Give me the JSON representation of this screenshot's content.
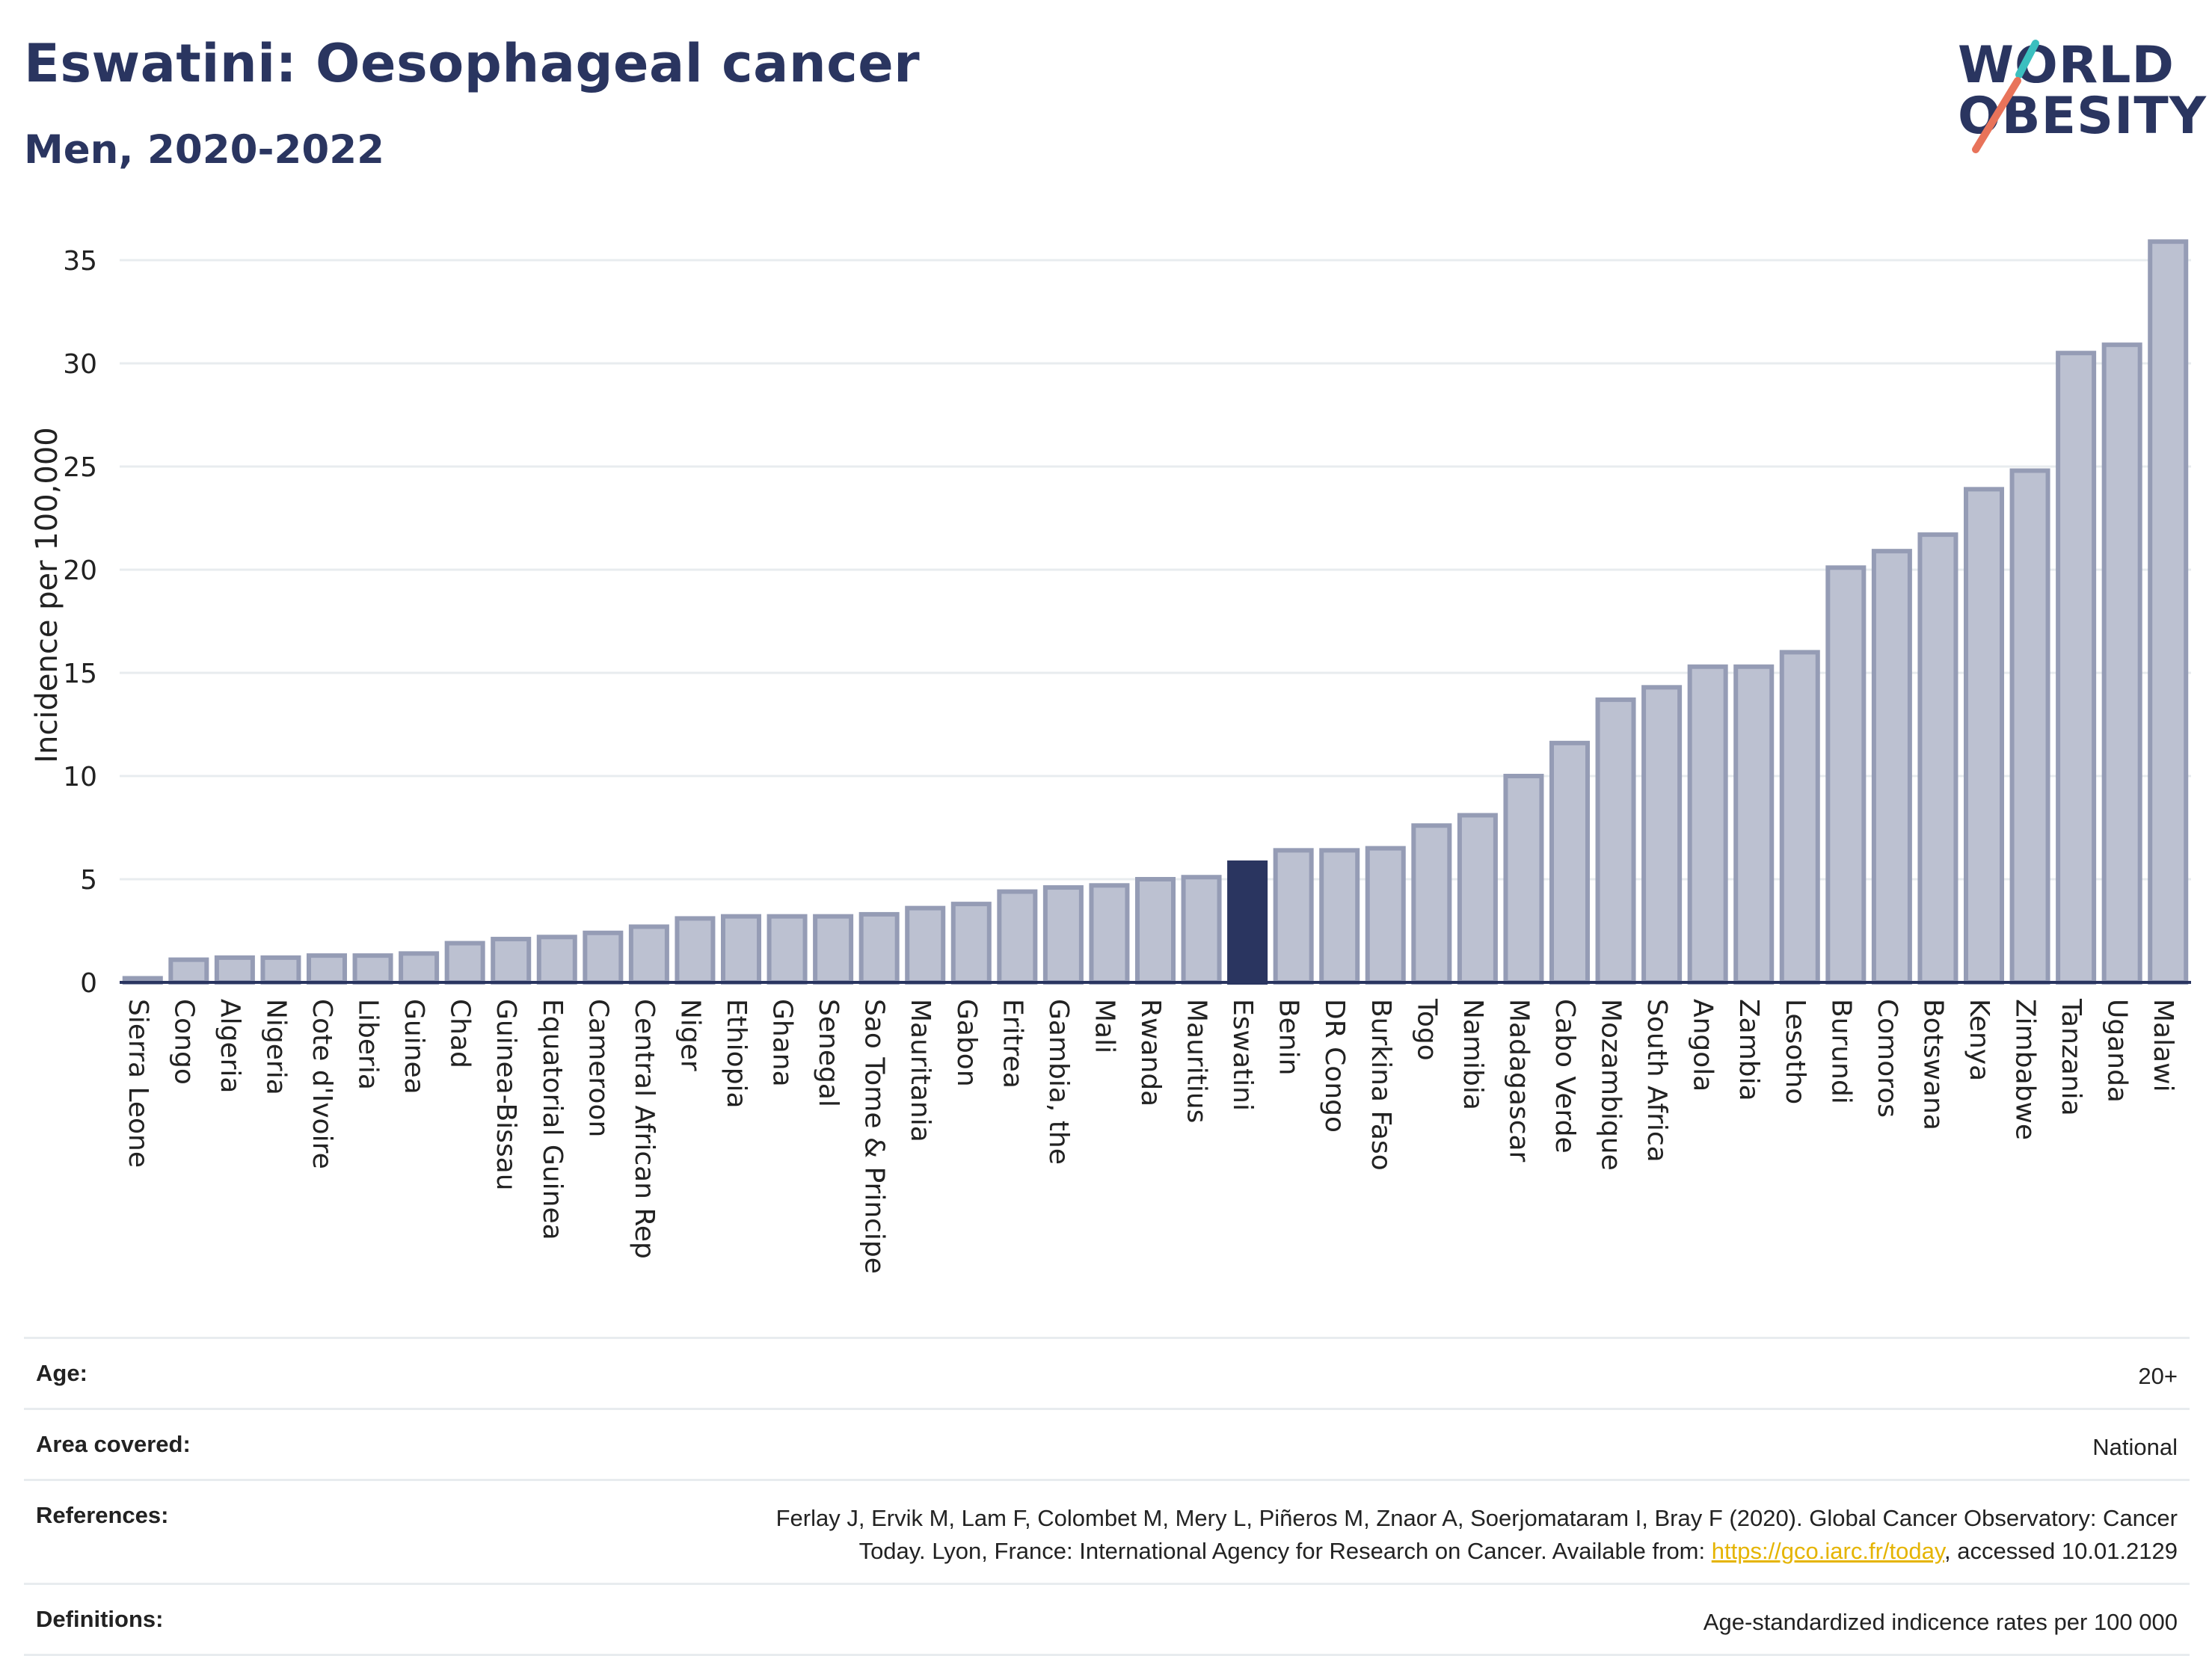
{
  "header": {
    "title": "Eswatini: Oesophageal cancer",
    "subtitle": "Men, 2020-2022"
  },
  "logo": {
    "line1": "WORLD",
    "line2": "OBESITY",
    "colors": {
      "text": "#2a3560",
      "teal": "#3bbfbf",
      "coral": "#e8735a"
    }
  },
  "chart_data": {
    "type": "bar",
    "ylabel": "Incidence per 100,000",
    "ylim": [
      0,
      36
    ],
    "yticks": [
      0,
      5,
      10,
      15,
      20,
      25,
      30,
      35
    ],
    "grid": true,
    "highlight": "Eswatini",
    "colors": {
      "bar": "#bcc1d1",
      "bar_border": "#959cb5",
      "highlight": "#2a3560",
      "grid": "#e8ecef",
      "axis": "#2a3560"
    },
    "categories": [
      "Sierra Leone",
      "Congo",
      "Algeria",
      "Nigeria",
      "Cote d'Ivoire",
      "Liberia",
      "Guinea",
      "Chad",
      "Guinea-Bissau",
      "Equatorial Guinea",
      "Cameroon",
      "Central African Rep",
      "Niger",
      "Ethiopia",
      "Ghana",
      "Senegal",
      "Sao Tome & Principe",
      "Mauritania",
      "Gabon",
      "Eritrea",
      "Gambia, the",
      "Mali",
      "Rwanda",
      "Mauritius",
      "Eswatini",
      "Benin",
      "DR Congo",
      "Burkina Faso",
      "Togo",
      "Namibia",
      "Madagascar",
      "Cabo Verde",
      "Mozambique",
      "South Africa",
      "Angola",
      "Zambia",
      "Lesotho",
      "Burundi",
      "Comoros",
      "Botswana",
      "Kenya",
      "Zimbabwe",
      "Tanzania",
      "Uganda",
      "Malawi"
    ],
    "values": [
      0.2,
      1.1,
      1.2,
      1.2,
      1.3,
      1.3,
      1.4,
      1.9,
      2.1,
      2.2,
      2.4,
      2.7,
      3.1,
      3.2,
      3.2,
      3.2,
      3.3,
      3.6,
      3.8,
      4.4,
      4.6,
      4.7,
      5.0,
      5.1,
      5.8,
      6.4,
      6.4,
      6.5,
      7.6,
      8.1,
      10.0,
      11.6,
      13.7,
      14.3,
      15.3,
      15.3,
      16.0,
      20.1,
      20.9,
      21.7,
      23.9,
      24.8,
      30.5,
      30.9,
      35.9
    ]
  },
  "info": {
    "rows": [
      {
        "label": "Age:",
        "value": "20+"
      },
      {
        "label": "Area covered:",
        "value": "National"
      },
      {
        "label": "References:",
        "value_line1": "Ferlay J, Ervik M, Lam F, Colombet M, Mery L, Piñeros M, Znaor A, Soerjomataram I, Bray F (2020). Global Cancer Observatory: Cancer",
        "value_line2_pre": "Today. Lyon, France: International Agency for Research on Cancer. Available from: ",
        "link": "https://gco.iarc.fr/today",
        "value_line2_post": ", accessed 10.01.2129"
      },
      {
        "label": "Definitions:",
        "value": "Age-standardized indicence rates per 100 000"
      }
    ]
  }
}
